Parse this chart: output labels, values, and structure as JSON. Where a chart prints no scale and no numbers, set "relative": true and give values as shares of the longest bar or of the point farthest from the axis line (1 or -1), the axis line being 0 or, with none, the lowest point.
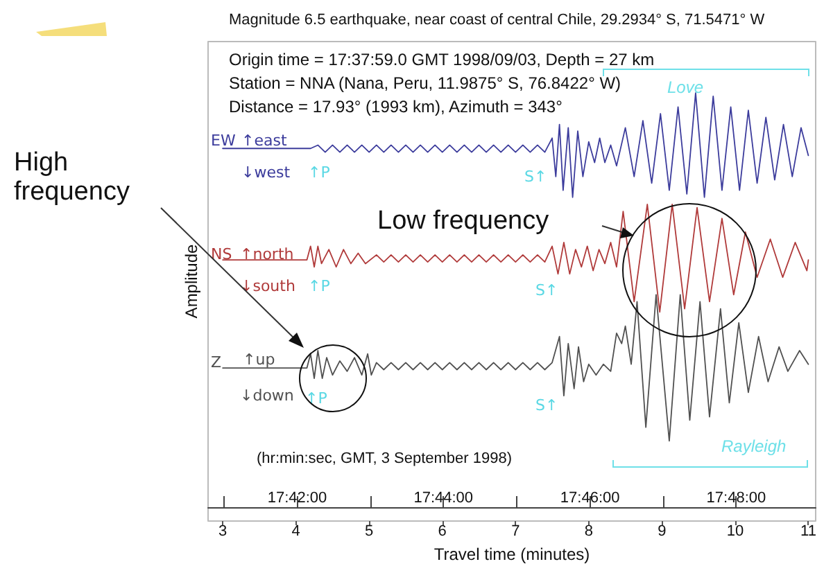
{
  "chart_data": {
    "type": "line",
    "title": "Magnitude 6.5 earthquake, near coast of central Chile, 29.2934° S, 71.5471° W",
    "xlabel": "Travel time (minutes)",
    "ylabel": "Amplitude",
    "relative": true,
    "grid": false,
    "marker": "none",
    "line_style": "solid",
    "xlim": [
      2.8,
      11.1
    ],
    "xticks": [
      3,
      4,
      5,
      6,
      7,
      8,
      9,
      10,
      11
    ],
    "x2lim": [
      17.6797,
      17.8181
    ],
    "x2ticks": [
      {
        "value": 17.6833,
        "label": null
      },
      {
        "value": 17.7,
        "label": "17:42:00"
      },
      {
        "value": 17.7167,
        "label": null
      },
      {
        "value": 17.7333,
        "label": "17:44:00"
      },
      {
        "value": 17.75,
        "label": null
      },
      {
        "value": 17.7667,
        "label": "17:46:00"
      },
      {
        "value": 17.7833,
        "label": null
      },
      {
        "value": 17.8,
        "label": "17:48:00"
      }
    ],
    "annotations": [
      "Origin time = 17:37:59.0 GMT 1998/09/03, Depth = 27 km",
      "Station = NNA (Nana, Peru, 11.9875° S, 76.8422° W)",
      "Distance = 17.93° (1993 km), Azimuth = 343°",
      "(hr:min:sec, GMT, 3 September 1998)",
      "High frequency",
      "Low frequency",
      "EW",
      "↑east",
      "↓west",
      "↑P",
      "S↑",
      "NS",
      "↑north",
      "↓south",
      "↑P",
      "S↑",
      "Z",
      "↑up",
      "↓down",
      "↑P",
      "S↑",
      "Love",
      "Rayleigh"
    ],
    "series": [
      {
        "color": "#3c3c9c",
        "x": [
          3.0,
          4.2,
          4.3,
          4.4,
          4.5,
          4.6,
          4.7,
          4.8,
          4.9,
          5.0,
          5.1,
          5.2,
          5.3,
          5.4,
          5.5,
          5.6,
          5.7,
          5.8,
          5.9,
          6.0,
          6.1,
          6.2,
          6.3,
          6.4,
          6.5,
          6.6,
          6.7,
          6.8,
          6.9,
          7.0,
          7.1,
          7.2,
          7.3,
          7.4,
          7.5,
          7.55,
          7.6,
          7.65,
          7.72,
          7.78,
          7.85,
          7.92,
          8.0,
          8.08,
          8.15,
          8.22,
          8.3,
          8.38,
          8.5,
          8.62,
          8.74,
          8.86,
          8.98,
          9.1,
          9.22,
          9.34,
          9.46,
          9.58,
          9.7,
          9.82,
          9.94,
          10.06,
          10.18,
          10.3,
          10.42,
          10.54,
          10.66,
          10.78,
          10.9,
          11.0
        ],
        "values": [
          0.866,
          0.866,
          0.874,
          0.857,
          0.874,
          0.857,
          0.874,
          0.857,
          0.874,
          0.857,
          0.874,
          0.857,
          0.874,
          0.857,
          0.874,
          0.857,
          0.874,
          0.857,
          0.874,
          0.857,
          0.874,
          0.857,
          0.874,
          0.857,
          0.874,
          0.857,
          0.874,
          0.857,
          0.874,
          0.857,
          0.874,
          0.857,
          0.874,
          0.857,
          0.891,
          0.798,
          0.924,
          0.765,
          0.916,
          0.748,
          0.908,
          0.798,
          0.882,
          0.832,
          0.891,
          0.832,
          0.874,
          0.824,
          0.916,
          0.798,
          0.933,
          0.782,
          0.95,
          0.765,
          0.966,
          0.756,
          1,
          0.748,
          0.992,
          0.765,
          0.966,
          0.765,
          0.958,
          0.782,
          0.941,
          0.79,
          0.924,
          0.798,
          0.916,
          0.849
        ]
      },
      {
        "color": "#b03a3a",
        "x": [
          3.0,
          4.15,
          4.2,
          4.25,
          4.3,
          4.35,
          4.45,
          4.55,
          4.65,
          4.75,
          4.85,
          4.95,
          5.1,
          5.2,
          5.3,
          5.4,
          5.5,
          5.6,
          5.7,
          5.8,
          5.9,
          6.0,
          6.1,
          6.2,
          6.3,
          6.4,
          6.5,
          6.6,
          6.7,
          6.8,
          6.9,
          7.0,
          7.1,
          7.2,
          7.3,
          7.4,
          7.5,
          7.58,
          7.66,
          7.74,
          7.82,
          7.9,
          7.98,
          8.06,
          8.14,
          8.22,
          8.3,
          8.38,
          8.47,
          8.62,
          8.8,
          8.97,
          9.14,
          9.31,
          9.48,
          9.65,
          9.82,
          9.98,
          10.14,
          10.3,
          10.48,
          10.65,
          10.82,
          10.98,
          11.0
        ],
        "values": [
          0.597,
          0.597,
          0.63,
          0.58,
          0.63,
          0.588,
          0.622,
          0.58,
          0.622,
          0.588,
          0.613,
          0.588,
          0.609,
          0.592,
          0.609,
          0.592,
          0.609,
          0.592,
          0.609,
          0.592,
          0.609,
          0.592,
          0.609,
          0.592,
          0.609,
          0.592,
          0.609,
          0.592,
          0.609,
          0.592,
          0.609,
          0.592,
          0.609,
          0.592,
          0.609,
          0.592,
          0.63,
          0.563,
          0.639,
          0.563,
          0.622,
          0.58,
          0.63,
          0.571,
          0.622,
          0.588,
          0.639,
          0.58,
          0.714,
          0.496,
          0.731,
          0.471,
          0.731,
          0.479,
          0.723,
          0.496,
          0.697,
          0.513,
          0.664,
          0.555,
          0.647,
          0.555,
          0.639,
          0.571,
          0.597
        ]
      },
      {
        "color": "#505050",
        "x": [
          3.0,
          4.15,
          4.2,
          4.25,
          4.3,
          4.36,
          4.42,
          4.5,
          4.6,
          4.7,
          4.8,
          4.9,
          4.98,
          5.03,
          5.1,
          5.2,
          5.3,
          5.4,
          5.5,
          5.6,
          5.7,
          5.8,
          5.9,
          6.0,
          6.1,
          6.2,
          6.3,
          6.4,
          6.5,
          6.6,
          6.7,
          6.8,
          6.9,
          7.0,
          7.1,
          7.2,
          7.3,
          7.4,
          7.5,
          7.6,
          7.66,
          7.72,
          7.8,
          7.86,
          7.93,
          8.0,
          8.1,
          8.2,
          8.3,
          8.38,
          8.45,
          8.5,
          8.58,
          8.66,
          8.78,
          8.92,
          9.1,
          9.25,
          9.38,
          9.52,
          9.65,
          9.8,
          9.92,
          10.05,
          10.18,
          10.32,
          10.45,
          10.6,
          10.72,
          10.88,
          11.0
        ],
        "values": [
          0.336,
          0.336,
          0.37,
          0.311,
          0.378,
          0.311,
          0.361,
          0.319,
          0.353,
          0.328,
          0.361,
          0.319,
          0.37,
          0.319,
          0.349,
          0.332,
          0.349,
          0.332,
          0.349,
          0.332,
          0.349,
          0.332,
          0.349,
          0.332,
          0.349,
          0.332,
          0.349,
          0.332,
          0.349,
          0.332,
          0.349,
          0.332,
          0.349,
          0.332,
          0.349,
          0.332,
          0.349,
          0.332,
          0.349,
          0.412,
          0.269,
          0.395,
          0.286,
          0.387,
          0.303,
          0.345,
          0.319,
          0.345,
          0.328,
          0.42,
          0.395,
          0.437,
          0.345,
          0.496,
          0.193,
          0.513,
          0.16,
          0.513,
          0.21,
          0.496,
          0.218,
          0.479,
          0.252,
          0.445,
          0.277,
          0.412,
          0.303,
          0.387,
          0.328,
          0.378,
          0.345
        ]
      }
    ]
  }
}
